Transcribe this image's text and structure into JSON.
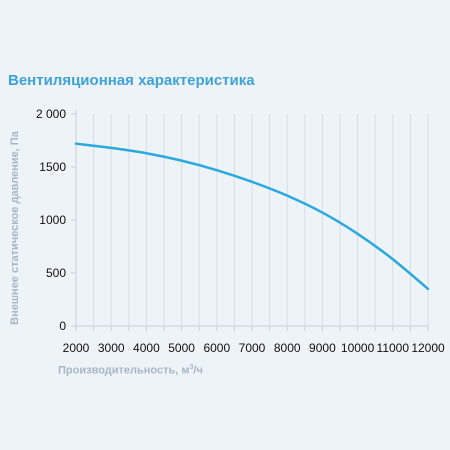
{
  "chart_data": {
    "type": "line",
    "title": "Вентиляционная характеристика",
    "xlabel_text": "Производительность, м",
    "xlabel_sup": "3",
    "xlabel_tail": "/ч",
    "ylabel": "Внешнее статическое давление, Па",
    "xlim": [
      2000,
      12000
    ],
    "ylim": [
      0,
      2000
    ],
    "xticks": [
      2000,
      3000,
      4000,
      5000,
      6000,
      7000,
      8000,
      9000,
      10000,
      11000,
      12000
    ],
    "xtick_labels": [
      "2000",
      "3000",
      "4000",
      "5000",
      "6000",
      "7000",
      "8000",
      "9000",
      "10000",
      "11000",
      "12000"
    ],
    "yticks": [
      0,
      500,
      1000,
      1500,
      2000
    ],
    "ytick_labels": [
      "0",
      "500",
      "1000",
      "1500",
      "2 000"
    ],
    "grid": true,
    "series": [
      {
        "color": "#29a9e0",
        "x": [
          2000,
          3000,
          4000,
          5000,
          6000,
          7000,
          8000,
          9000,
          10000,
          11000,
          12000
        ],
        "y": [
          1720,
          1680,
          1630,
          1560,
          1470,
          1360,
          1230,
          1070,
          870,
          630,
          350
        ]
      }
    ]
  }
}
